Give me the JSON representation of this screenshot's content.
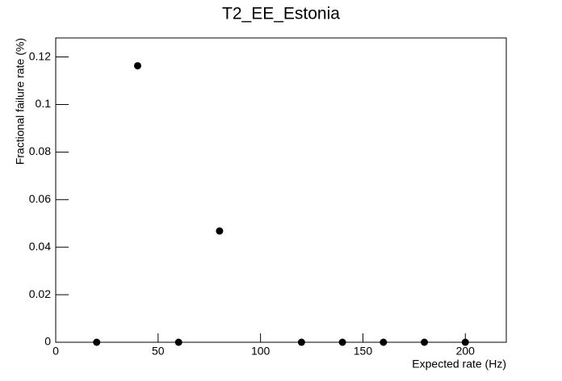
{
  "chart_data": {
    "type": "scatter",
    "title": "T2_EE_Estonia",
    "x_label": "Expected rate (Hz)",
    "y_label": "Fractional failure rate (%)",
    "x": [
      20,
      40,
      60,
      80,
      120,
      140,
      160,
      180,
      200
    ],
    "values": [
      0,
      0.1163,
      0,
      0.0468,
      0,
      0,
      0,
      0,
      0
    ],
    "color": "#000000",
    "xlim": [
      0,
      220
    ],
    "xticks": [
      0,
      50,
      100,
      150,
      200
    ],
    "ylim": [
      0,
      0.128
    ],
    "yticks": [
      0,
      0.02,
      0.04,
      0.06,
      0.08,
      0.1,
      0.12
    ],
    "grid": false
  }
}
